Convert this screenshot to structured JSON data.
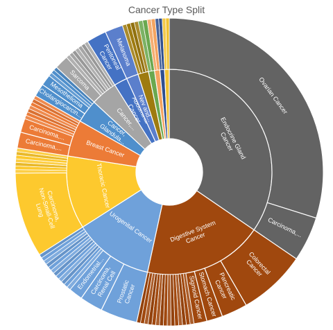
{
  "title": "Cancer Type Split",
  "colors": {
    "endocrine": "#636363",
    "digestive": "#a0480e",
    "urogenital": "#6fa1da",
    "thoracic": "#fdc92e",
    "breast": "#ec7b37",
    "glandular": "#4f8fcc",
    "cancer_other": "#a5a5a5",
    "abdominal": "#4472c4",
    "nev": "#5b7fcc",
    "small_a": "#9e7b10",
    "small_b": "#6aa84f",
    "small_c": "#f4a460",
    "small_d": "#2f4f8f",
    "small_e": "#f1c232"
  },
  "chart_data": {
    "type": "sunburst",
    "title": "Cancer Type Split",
    "start_angle_deg": 0,
    "inner": [
      {
        "label": "Endocrine Gland Cancer",
        "value": 33,
        "color_key": "endocrine",
        "children": [
          {
            "label": "Ovarian Cancer",
            "value": 28.5
          },
          {
            "label": "Carcinoma,...",
            "value": 4.5
          }
        ]
      },
      {
        "label": "Digestive System Cancer",
        "value": 18,
        "color_key": "digestive",
        "children": [
          {
            "label": "Colorectal Cancer",
            "value": 6.8
          },
          {
            "label": "Pancreatic Cancer",
            "value": 2.6
          },
          {
            "label": "Stomach Cancer",
            "value": 1.6
          },
          {
            "label": "Sigmoid Cancer",
            "value": 1.3
          },
          {
            "label": "",
            "value": 5.7
          }
        ]
      },
      {
        "label": "Urogenital Cancer",
        "value": 12,
        "color_key": "urogenital",
        "children": [
          {
            "label": "Prostatic Cancer",
            "value": 3.7
          },
          {
            "label": "Carcinoma, Renal Cell",
            "value": 2.3
          },
          {
            "label": "Endometrial...",
            "value": 1.4
          },
          {
            "label": "",
            "value": 4.6
          }
        ]
      },
      {
        "label": "Thoracic Cancer",
        "value": 11,
        "color_key": "thoracic",
        "children": [
          {
            "label": "Carcinoma, Non-Small-Cell Lung",
            "value": 8.5
          },
          {
            "label": "",
            "value": 2.5
          }
        ]
      },
      {
        "label": "Breast Cancer",
        "value": 5.5,
        "color_key": "breast",
        "children": [
          {
            "label": "Carcinoma,...",
            "value": 1.6
          },
          {
            "label": "Carcinoma,...",
            "value": 1.4
          },
          {
            "label": "",
            "value": 2.5
          }
        ]
      },
      {
        "label": "Cancer, Glandula...",
        "value": 3.5,
        "color_key": "glandular",
        "children": [
          {
            "label": "Cholangiocarcin...",
            "value": 1.3
          },
          {
            "label": "Mesothelioma",
            "value": 1.1
          },
          {
            "label": "",
            "value": 1.1
          }
        ]
      },
      {
        "label": "Cancer,...",
        "value": 4,
        "color_key": "cancer_other",
        "children": [
          {
            "label": "Sarcoma",
            "value": 1.4
          },
          {
            "label": "",
            "value": 2.6
          }
        ]
      },
      {
        "label": "Abdominal Cancer",
        "value": 2,
        "color_key": "abdominal",
        "children": [
          {
            "label": "Peritoneal Cancer",
            "value": 2
          }
        ]
      },
      {
        "label": "Nev and...",
        "value": 1.8,
        "color_key": "nev",
        "children": [
          {
            "label": "Melanoma",
            "value": 1.8
          }
        ]
      },
      {
        "label": "",
        "value": 1.6,
        "color_key": "small_a",
        "children": [
          {
            "label": "",
            "value": 1.6
          }
        ]
      },
      {
        "label": "",
        "value": 0.9,
        "color_key": "small_b",
        "children": [
          {
            "label": "",
            "value": 0.9
          }
        ]
      },
      {
        "label": "",
        "value": 0.8,
        "color_key": "small_c",
        "children": [
          {
            "label": "",
            "value": 0.8
          }
        ]
      },
      {
        "label": "",
        "value": 0.7,
        "color_key": "small_d",
        "children": [
          {
            "label": "",
            "value": 0.7
          }
        ]
      },
      {
        "label": "",
        "value": 0.7,
        "color_key": "small_e",
        "children": [
          {
            "label": "",
            "value": 0.7
          }
        ]
      }
    ]
  }
}
